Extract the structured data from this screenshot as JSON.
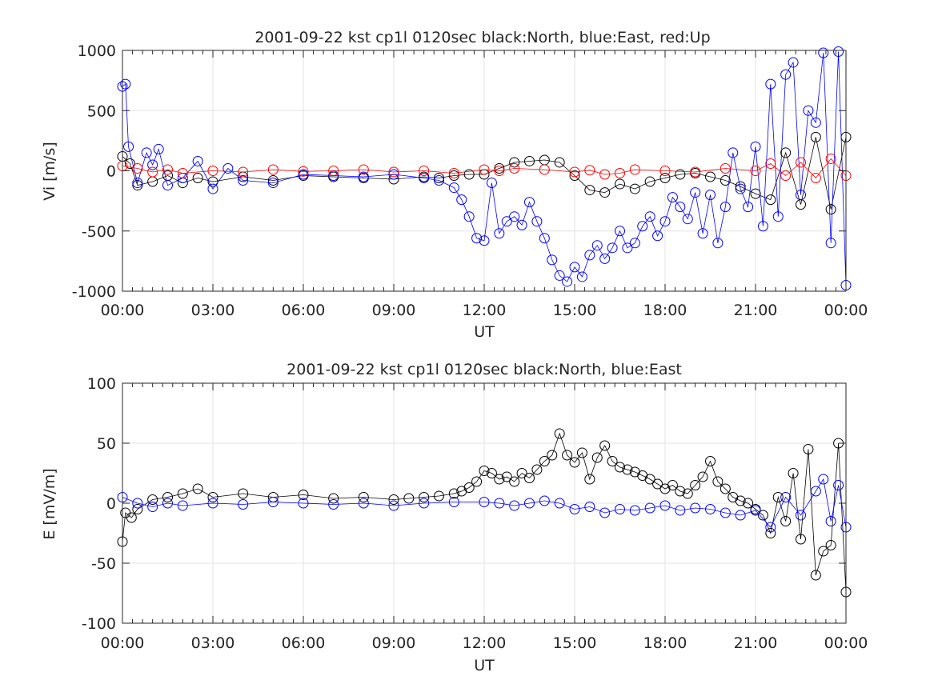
{
  "chart_data": [
    {
      "type": "scatter",
      "title": "2001-09-22 kst cp1l 0120sec black:North, blue:East, red:Up",
      "xlabel": "UT",
      "ylabel": "Vi [m/s]",
      "xlim": [
        0,
        24
      ],
      "ylim": [
        -1000,
        1000
      ],
      "x_tick_labels": [
        "00:00",
        "03:00",
        "06:00",
        "09:00",
        "12:00",
        "15:00",
        "18:00",
        "21:00",
        "00:00"
      ],
      "y_tick_labels": [
        "1000",
        "500",
        "0",
        "-500",
        "-1000"
      ],
      "y_ticks": [
        1000,
        500,
        0,
        -500,
        -1000
      ],
      "grid": true,
      "marker": "open-circle",
      "series": [
        {
          "color": "#000000",
          "x": [
            0.0,
            0.25,
            0.5,
            1.0,
            1.5,
            2.0,
            2.5,
            3.0,
            4.0,
            5.0,
            6.0,
            7.0,
            8.0,
            9.0,
            10.0,
            10.5,
            11.0,
            11.5,
            12.0,
            12.5,
            13.0,
            13.5,
            14.0,
            14.5,
            15.0,
            15.5,
            16.0,
            16.5,
            17.0,
            17.5,
            18.0,
            18.5,
            19.0,
            19.5,
            20.0,
            20.5,
            21.0,
            21.5,
            22.0,
            22.5,
            23.0,
            23.5,
            24.0
          ],
          "y": [
            120,
            60,
            -120,
            -90,
            -40,
            -100,
            -60,
            -90,
            -50,
            -80,
            -40,
            -50,
            -60,
            -70,
            -50,
            -60,
            -40,
            -30,
            -30,
            20,
            70,
            80,
            90,
            70,
            -40,
            -160,
            -180,
            -110,
            -150,
            -90,
            -60,
            -30,
            -20,
            -50,
            -80,
            -130,
            -190,
            -240,
            150,
            -280,
            280,
            -320,
            280
          ]
        },
        {
          "color": "#0000ff",
          "x": [
            0.0,
            0.1,
            0.2,
            0.5,
            0.8,
            1.0,
            1.2,
            1.5,
            2.0,
            2.5,
            3.0,
            3.5,
            4.0,
            5.0,
            6.0,
            7.0,
            8.0,
            9.0,
            10.0,
            10.5,
            11.0,
            11.25,
            11.5,
            11.75,
            12.0,
            12.25,
            12.5,
            12.75,
            13.0,
            13.25,
            13.5,
            13.75,
            14.0,
            14.25,
            14.5,
            14.75,
            15.0,
            15.25,
            15.5,
            15.75,
            16.0,
            16.25,
            16.5,
            16.75,
            17.0,
            17.25,
            17.5,
            17.75,
            18.0,
            18.25,
            18.5,
            18.75,
            19.0,
            19.25,
            19.5,
            19.75,
            20.0,
            20.25,
            20.5,
            20.75,
            21.0,
            21.25,
            21.5,
            21.75,
            22.0,
            22.25,
            22.5,
            22.75,
            23.0,
            23.25,
            23.5,
            23.75,
            24.0
          ],
          "y": [
            700,
            720,
            200,
            -100,
            150,
            50,
            180,
            -120,
            -60,
            80,
            -150,
            20,
            -80,
            -100,
            -30,
            -40,
            -50,
            -30,
            -60,
            -80,
            -140,
            -240,
            -380,
            -560,
            -580,
            -100,
            -520,
            -420,
            -380,
            -450,
            -260,
            -420,
            -560,
            -740,
            -870,
            -920,
            -800,
            -880,
            -700,
            -620,
            -730,
            -640,
            -500,
            -640,
            -600,
            -460,
            -380,
            -540,
            -420,
            -220,
            -300,
            -400,
            -180,
            -520,
            -200,
            -600,
            -300,
            150,
            -150,
            -300,
            200,
            -460,
            720,
            -380,
            800,
            900,
            -200,
            500,
            400,
            980,
            -600,
            990,
            -950
          ]
        },
        {
          "color": "#ff0000",
          "x": [
            0.0,
            0.5,
            1.0,
            1.5,
            2.0,
            3.0,
            4.0,
            5.0,
            6.0,
            7.0,
            8.0,
            9.0,
            10.0,
            11.0,
            12.0,
            12.5,
            13.0,
            14.0,
            15.0,
            15.5,
            16.0,
            16.5,
            17.0,
            18.0,
            19.0,
            20.0,
            21.0,
            21.5,
            22.0,
            22.5,
            23.0,
            23.5,
            24.0
          ],
          "y": [
            40,
            20,
            -10,
            10,
            -20,
            0,
            -10,
            10,
            -5,
            0,
            10,
            -10,
            0,
            -20,
            10,
            0,
            20,
            10,
            -10,
            5,
            -30,
            -20,
            10,
            0,
            -10,
            20,
            0,
            60,
            -40,
            70,
            -60,
            100,
            -40
          ]
        }
      ]
    },
    {
      "type": "scatter",
      "title": "2001-09-22 kst cp1l 0120sec black:North, blue:East",
      "xlabel": "UT",
      "ylabel": "E [mV/m]",
      "xlim": [
        0,
        24
      ],
      "ylim": [
        -100,
        100
      ],
      "x_tick_labels": [
        "00:00",
        "03:00",
        "06:00",
        "09:00",
        "12:00",
        "15:00",
        "18:00",
        "21:00",
        "00:00"
      ],
      "y_tick_labels": [
        "100",
        "50",
        "0",
        "-50",
        "-100"
      ],
      "y_ticks": [
        100,
        50,
        0,
        -50,
        -100
      ],
      "grid": true,
      "marker": "open-circle",
      "series": [
        {
          "color": "#000000",
          "x": [
            0.0,
            0.1,
            0.3,
            0.5,
            1.0,
            1.5,
            2.0,
            2.5,
            3.0,
            4.0,
            5.0,
            6.0,
            7.0,
            8.0,
            9.0,
            9.5,
            10.0,
            10.5,
            11.0,
            11.25,
            11.5,
            11.75,
            12.0,
            12.25,
            12.5,
            12.75,
            13.0,
            13.25,
            13.5,
            13.75,
            14.0,
            14.25,
            14.5,
            14.75,
            15.0,
            15.25,
            15.5,
            15.75,
            16.0,
            16.25,
            16.5,
            16.75,
            17.0,
            17.25,
            17.5,
            17.75,
            18.0,
            18.25,
            18.5,
            18.75,
            19.0,
            19.25,
            19.5,
            19.75,
            20.0,
            20.25,
            20.5,
            20.75,
            21.0,
            21.25,
            21.5,
            21.75,
            22.0,
            22.25,
            22.5,
            22.75,
            23.0,
            23.25,
            23.5,
            23.75,
            24.0
          ],
          "y": [
            -32,
            -8,
            -12,
            -5,
            3,
            5,
            8,
            12,
            5,
            8,
            5,
            7,
            4,
            5,
            3,
            4,
            5,
            6,
            8,
            10,
            13,
            18,
            27,
            25,
            20,
            22,
            18,
            25,
            21,
            28,
            35,
            40,
            58,
            40,
            34,
            42,
            20,
            38,
            48,
            35,
            30,
            28,
            26,
            23,
            20,
            16,
            12,
            15,
            10,
            8,
            15,
            22,
            35,
            18,
            12,
            5,
            2,
            0,
            -5,
            -10,
            -25,
            5,
            -15,
            25,
            -30,
            45,
            -60,
            -40,
            -35,
            50,
            -74
          ]
        },
        {
          "color": "#0000ff",
          "x": [
            0.0,
            0.5,
            1.0,
            1.5,
            2.0,
            3.0,
            4.0,
            5.0,
            6.0,
            7.0,
            8.0,
            9.0,
            10.0,
            11.0,
            12.0,
            12.5,
            13.0,
            13.5,
            14.0,
            14.5,
            15.0,
            15.5,
            16.0,
            16.5,
            17.0,
            17.5,
            18.0,
            18.5,
            19.0,
            19.5,
            20.0,
            20.5,
            21.0,
            21.5,
            22.0,
            22.5,
            23.0,
            23.25,
            23.5,
            23.75,
            24.0
          ],
          "y": [
            5,
            0,
            -3,
            0,
            -2,
            0,
            -1,
            1,
            0,
            -1,
            0,
            -2,
            0,
            1,
            1,
            0,
            -2,
            0,
            2,
            0,
            -5,
            -3,
            -8,
            -5,
            -6,
            -4,
            -2,
            -6,
            -4,
            -5,
            -8,
            -10,
            -6,
            -20,
            5,
            -10,
            10,
            20,
            -15,
            15,
            -20
          ]
        }
      ]
    }
  ]
}
